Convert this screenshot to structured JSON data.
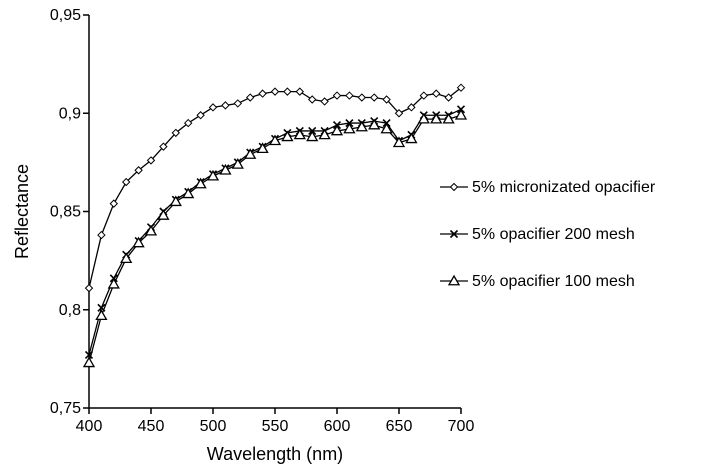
{
  "chart_data": {
    "type": "line",
    "xlabel": "Wavelength (nm)",
    "ylabel": "Reflectance",
    "xlim": [
      400,
      700
    ],
    "ylim": [
      0.75,
      0.95
    ],
    "x_ticks": [
      400,
      450,
      500,
      550,
      600,
      650,
      700
    ],
    "x_tick_labels": [
      "400",
      "450",
      "500",
      "550",
      "600",
      "650",
      "700"
    ],
    "y_ticks": [
      0.75,
      0.8,
      0.85,
      0.9,
      0.95
    ],
    "y_tick_labels": [
      "0,75",
      "0,8",
      "0,85",
      "0,9",
      "0,95"
    ],
    "grid": false,
    "legend_position": "right",
    "x": [
      400,
      410,
      420,
      430,
      440,
      450,
      460,
      470,
      480,
      490,
      500,
      510,
      520,
      530,
      540,
      550,
      560,
      570,
      580,
      590,
      600,
      610,
      620,
      630,
      640,
      650,
      660,
      670,
      680,
      690,
      700
    ],
    "series": [
      {
        "name": "5% micronizated opacifier",
        "marker": "diamond",
        "values": [
          0.811,
          0.838,
          0.854,
          0.865,
          0.871,
          0.876,
          0.883,
          0.89,
          0.895,
          0.899,
          0.903,
          0.904,
          0.905,
          0.908,
          0.91,
          0.911,
          0.911,
          0.911,
          0.907,
          0.906,
          0.909,
          0.909,
          0.908,
          0.908,
          0.907,
          0.9,
          0.903,
          0.909,
          0.91,
          0.908,
          0.913
        ]
      },
      {
        "name": "5% opacifier 200 mesh",
        "marker": "cross",
        "values": [
          0.777,
          0.801,
          0.816,
          0.828,
          0.835,
          0.842,
          0.85,
          0.856,
          0.86,
          0.865,
          0.869,
          0.872,
          0.875,
          0.88,
          0.883,
          0.887,
          0.89,
          0.891,
          0.891,
          0.891,
          0.894,
          0.895,
          0.895,
          0.896,
          0.895,
          0.886,
          0.889,
          0.899,
          0.899,
          0.899,
          0.902
        ]
      },
      {
        "name": "5% opacifier 100 mesh",
        "marker": "triangle",
        "values": [
          0.773,
          0.797,
          0.813,
          0.826,
          0.834,
          0.84,
          0.848,
          0.855,
          0.859,
          0.864,
          0.868,
          0.871,
          0.874,
          0.879,
          0.882,
          0.886,
          0.888,
          0.889,
          0.888,
          0.889,
          0.891,
          0.892,
          0.893,
          0.894,
          0.892,
          0.885,
          0.887,
          0.897,
          0.897,
          0.897,
          0.899
        ]
      }
    ]
  }
}
